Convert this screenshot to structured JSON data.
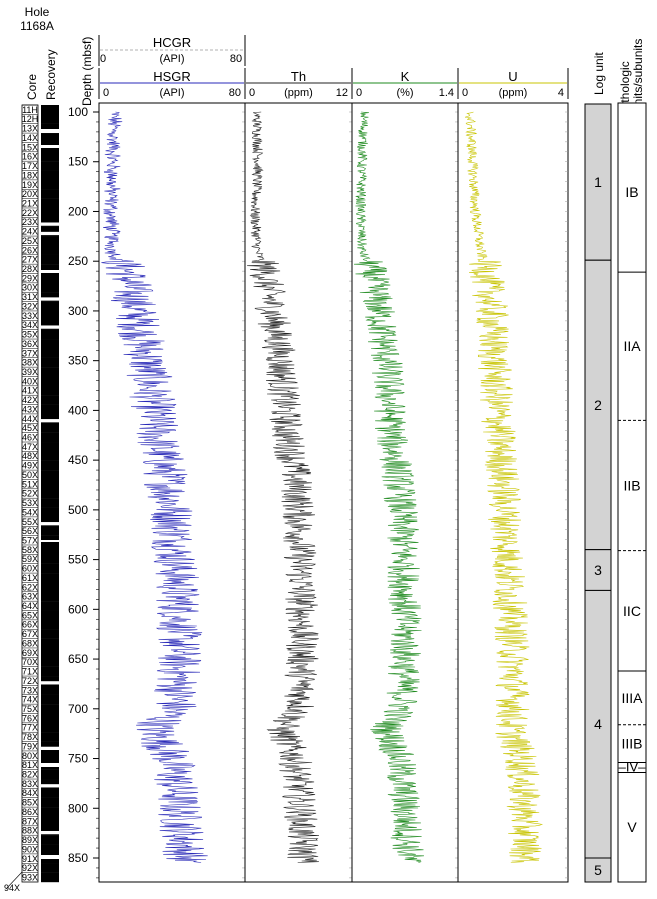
{
  "hole_label": [
    "Hole",
    "1168A"
  ],
  "columns": {
    "core": "Core",
    "recovery": "Recovery",
    "depth": "Depth (mbsf)",
    "log_unit": "Log unit",
    "lith_units": [
      "Lithologic",
      "units/subunits"
    ]
  },
  "trailing_core_label": "94X",
  "depth_ticks": [
    100,
    150,
    200,
    250,
    300,
    350,
    400,
    450,
    500,
    550,
    600,
    650,
    700,
    750,
    800,
    850
  ],
  "cores": [
    "11H",
    "12H",
    "13X",
    "14X",
    "15X",
    "16X",
    "17X",
    "18X",
    "19X",
    "20X",
    "21X",
    "22X",
    "23X",
    "24X",
    "25X",
    "26X",
    "27X",
    "28X",
    "29X",
    "30X",
    "31X",
    "32X",
    "33X",
    "34X",
    "35X",
    "36X",
    "37X",
    "38X",
    "39X",
    "40X",
    "41X",
    "42X",
    "43X",
    "44X",
    "45X",
    "46X",
    "47X",
    "48X",
    "49X",
    "50X",
    "51X",
    "52X",
    "53X",
    "54X",
    "55X",
    "56X",
    "57X",
    "58X",
    "59X",
    "60X",
    "61X",
    "62X",
    "63X",
    "64X",
    "65X",
    "66X",
    "67X",
    "68X",
    "69X",
    "70X",
    "71X",
    "72X",
    "73X",
    "74X",
    "75X",
    "76X",
    "77X",
    "78X",
    "79X",
    "80X",
    "81X",
    "82X",
    "83X",
    "84X",
    "85X",
    "86X",
    "87X",
    "88X",
    "89X",
    "90X",
    "91X",
    "92X",
    "93X"
  ],
  "chart_data": [
    {
      "type": "line",
      "title": "HSGR",
      "unit": "(API)",
      "xlim": [
        0,
        80
      ],
      "tick_labels": [
        "0",
        "80"
      ],
      "color": "#2a2ab8",
      "ylabel": "Depth (mbsf)",
      "ylim": [
        100,
        850
      ],
      "profile": {
        "depth": [
          100,
          150,
          200,
          240,
          260,
          300,
          350,
          400,
          430,
          460,
          500,
          550,
          600,
          650,
          700,
          720,
          750,
          800,
          850
        ],
        "value": [
          8,
          7,
          6,
          7,
          15,
          20,
          26,
          30,
          32,
          36,
          40,
          42,
          44,
          44,
          42,
          30,
          40,
          44,
          48
        ]
      },
      "header_extra": {
        "title": "HCGR",
        "unit": "(API)",
        "tick_labels": [
          "0",
          "80"
        ],
        "style": "dashed"
      }
    },
    {
      "type": "line",
      "title": "Th",
      "unit": "(ppm)",
      "xlim": [
        0,
        12
      ],
      "tick_labels": [
        "0",
        "12"
      ],
      "color": "#222222",
      "profile": {
        "depth": [
          100,
          150,
          200,
          240,
          260,
          300,
          350,
          400,
          430,
          460,
          500,
          550,
          600,
          650,
          700,
          720,
          750,
          800,
          850
        ],
        "value": [
          1.2,
          1.4,
          1.0,
          1.3,
          2.2,
          3.0,
          4.0,
          4.4,
          4.8,
          5.6,
          6.0,
          6.2,
          6.4,
          6.4,
          6.2,
          4.0,
          5.6,
          6.2,
          6.6
        ]
      }
    },
    {
      "type": "line",
      "title": "K",
      "unit": "(%)",
      "xlim": [
        0,
        1.4
      ],
      "tick_labels": [
        "0",
        "1.4"
      ],
      "color": "#1e8a1e",
      "profile": {
        "depth": [
          100,
          150,
          200,
          240,
          260,
          300,
          350,
          400,
          430,
          460,
          500,
          550,
          600,
          650,
          700,
          720,
          750,
          800,
          850
        ],
        "value": [
          0.15,
          0.12,
          0.1,
          0.12,
          0.25,
          0.35,
          0.45,
          0.5,
          0.52,
          0.6,
          0.65,
          0.68,
          0.7,
          0.7,
          0.66,
          0.45,
          0.62,
          0.7,
          0.75
        ]
      }
    },
    {
      "type": "line",
      "title": "U",
      "unit": "(ppm)",
      "xlim": [
        0,
        4
      ],
      "tick_labels": [
        "0",
        "4"
      ],
      "color": "#c8c400",
      "profile": {
        "depth": [
          100,
          150,
          200,
          240,
          260,
          300,
          350,
          400,
          430,
          460,
          500,
          550,
          600,
          650,
          700,
          720,
          750,
          800,
          850
        ],
        "value": [
          0.4,
          0.5,
          0.6,
          0.8,
          1.0,
          1.2,
          1.3,
          1.4,
          1.5,
          1.6,
          1.7,
          1.8,
          1.9,
          2.0,
          2.0,
          1.9,
          2.3,
          2.4,
          2.5
        ]
      }
    }
  ],
  "log_units": [
    {
      "label": "1",
      "top": 100,
      "bottom": 249
    },
    {
      "label": "2",
      "top": 249,
      "bottom": 540
    },
    {
      "label": "3",
      "top": 540,
      "bottom": 581
    },
    {
      "label": "4",
      "top": 581,
      "bottom": 850
    },
    {
      "label": "5",
      "top": 850,
      "bottom": 876
    }
  ],
  "lith_units": [
    {
      "label": "IB",
      "top": 100,
      "bottom": 261,
      "lower_boundary": "solid"
    },
    {
      "label": "IIA",
      "top": 261,
      "bottom": 410,
      "lower_boundary": "dashed"
    },
    {
      "label": "IIB",
      "top": 410,
      "bottom": 541,
      "lower_boundary": "dashed"
    },
    {
      "label": "IIC",
      "top": 541,
      "bottom": 662,
      "lower_boundary": "solid"
    },
    {
      "label": "IIIA",
      "top": 662,
      "bottom": 716,
      "lower_boundary": "dashed"
    },
    {
      "label": "IIIB",
      "top": 716,
      "bottom": 754,
      "lower_boundary": "solid"
    },
    {
      "label": "IV",
      "top": 754,
      "bottom": 764,
      "lower_boundary": "solid"
    },
    {
      "label": "V",
      "top": 764,
      "bottom": 876,
      "lower_boundary": "none"
    }
  ]
}
